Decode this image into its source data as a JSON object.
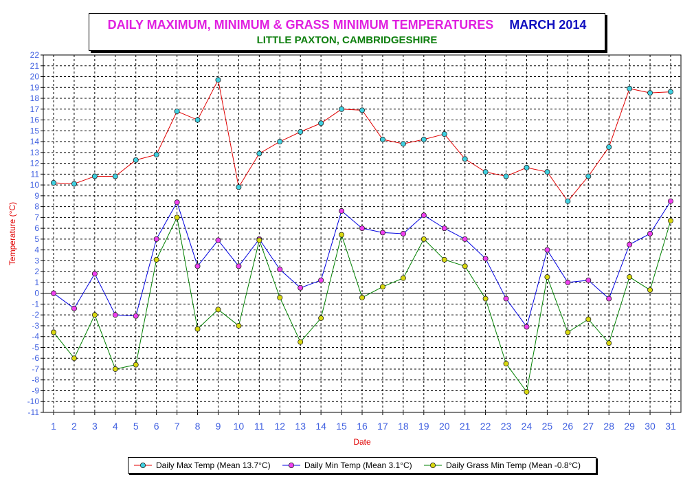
{
  "chart_data": {
    "type": "line",
    "title": "DAILY MAXIMUM, MINIMUM & GRASS MINIMUM TEMPERATURES",
    "title_month": "MARCH 2014",
    "subtitle": "LITTLE PAXTON, CAMBRIDGESHIRE",
    "xlabel": "Date",
    "ylabel": "Temperature (°C)",
    "ylim": [
      -11,
      22
    ],
    "xlim": [
      1,
      31
    ],
    "grid": true,
    "legend_position": "bottom",
    "x": [
      1,
      2,
      3,
      4,
      5,
      6,
      7,
      8,
      9,
      10,
      11,
      12,
      13,
      14,
      15,
      16,
      17,
      18,
      19,
      20,
      21,
      22,
      23,
      24,
      25,
      26,
      27,
      28,
      29,
      30,
      31
    ],
    "series": [
      {
        "name": "Daily Max Temp (Mean 13.7°C)",
        "line_color": "#e00000",
        "marker_color": "#40d0e0",
        "values": [
          10.2,
          10.1,
          10.8,
          10.8,
          12.3,
          12.8,
          16.8,
          16.0,
          19.7,
          9.8,
          12.9,
          14.0,
          14.9,
          15.7,
          17.0,
          16.9,
          14.2,
          13.8,
          14.2,
          14.7,
          12.4,
          11.2,
          10.8,
          11.6,
          11.2,
          8.5,
          10.8,
          13.5,
          18.9,
          18.5,
          18.6
        ]
      },
      {
        "name": "Daily Min Temp (Mean 3.1°C)",
        "line_color": "#0000e0",
        "marker_color": "#f040f0",
        "values": [
          0.0,
          -1.4,
          1.8,
          -2.0,
          -2.1,
          5.0,
          8.4,
          2.5,
          4.9,
          2.5,
          5.0,
          2.2,
          0.5,
          1.2,
          7.6,
          6.0,
          5.6,
          5.5,
          7.2,
          6.0,
          5.0,
          3.2,
          -0.5,
          -3.1,
          4.0,
          1.0,
          1.2,
          -0.5,
          4.5,
          5.5,
          8.5
        ]
      },
      {
        "name": "Daily Grass Min Temp (Mean -0.8°C)",
        "line_color": "#008000",
        "marker_color": "#d8d810",
        "values": [
          -3.6,
          -6.0,
          -2.0,
          -7.0,
          -6.6,
          3.1,
          7.0,
          -3.3,
          -1.5,
          -3.0,
          4.9,
          -0.4,
          -4.5,
          -2.3,
          5.4,
          -0.4,
          0.6,
          1.4,
          5.0,
          3.1,
          2.5,
          -0.5,
          -6.5,
          -9.1,
          1.5,
          -3.6,
          -2.4,
          -4.6,
          1.5,
          0.3,
          6.7
        ]
      }
    ],
    "colors": {
      "axis_label": "#e00000",
      "tick_label": "#4060e0",
      "title_main": "#e020e0",
      "title_month": "#1010c0",
      "subtitle": "#108010"
    }
  }
}
